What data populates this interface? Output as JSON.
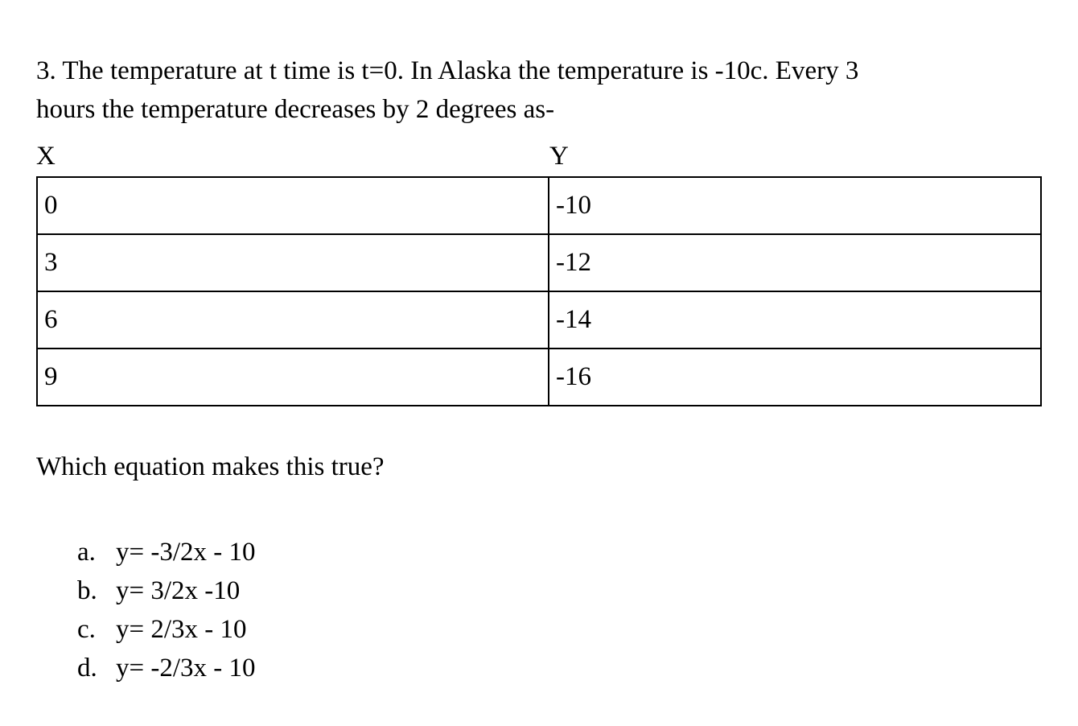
{
  "question": {
    "line1": "3. The temperature at t time is t=0. In Alaska the temperature is -10c. Every 3",
    "line2": "hours the temperature decreases by 2 degrees as-"
  },
  "table": {
    "x_header": "X",
    "y_header": "Y",
    "rows": [
      {
        "x": "0",
        "y": "-10"
      },
      {
        "x": "3",
        "y": "-12"
      },
      {
        "x": "6",
        "y": "-14"
      },
      {
        "x": "9",
        "y": "-16"
      }
    ]
  },
  "prompt": "Which equation makes this true?",
  "choices": [
    {
      "letter": "a.",
      "text": "y= -3/2x - 10"
    },
    {
      "letter": "b.",
      "text": "y= 3/2x -10"
    },
    {
      "letter": "c.",
      "text": "y= 2/3x - 10"
    },
    {
      "letter": "d.",
      "text": "y= -2/3x - 10"
    }
  ],
  "colors": {
    "text": "#000000",
    "background": "#ffffff",
    "table_border": "#000000"
  }
}
